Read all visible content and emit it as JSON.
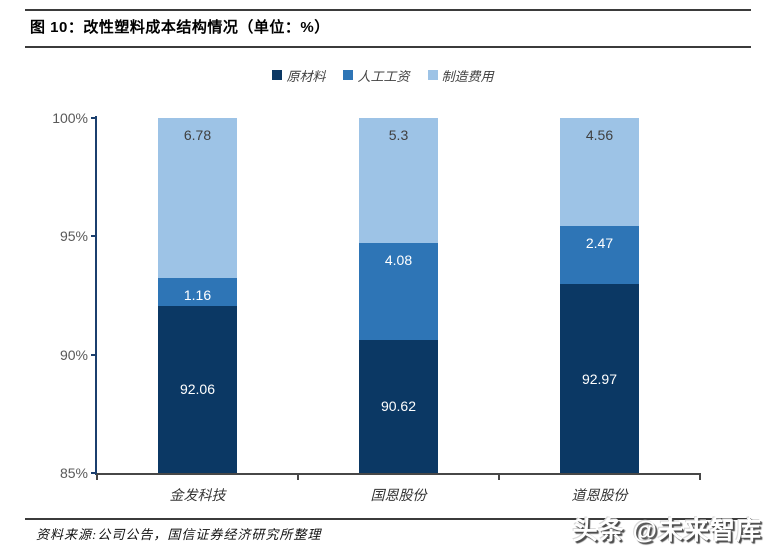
{
  "figure": {
    "title": "图 10：改性塑料成本结构情况（单位：%）",
    "source": "资料来源:公司公告，国信证券经济研究所整理",
    "watermark": "头条 @未来智库"
  },
  "chart_data": {
    "type": "bar",
    "stacked": true,
    "title": "改性塑料成本结构情况",
    "unit": "%",
    "categories": [
      "金发科技",
      "国恩股份",
      "道恩股份"
    ],
    "series": [
      {
        "name": "原材料",
        "color": "#0b3864",
        "values": [
          92.06,
          90.62,
          92.97
        ],
        "label_color": "#ffffff",
        "label_position": "center"
      },
      {
        "name": "人工工资",
        "color": "#2e75b6",
        "values": [
          1.16,
          4.08,
          2.47
        ],
        "label_color": "#ffffff",
        "label_position": "top"
      },
      {
        "name": "制造费用",
        "color": "#9dc3e6",
        "values": [
          6.78,
          5.3,
          4.56
        ],
        "label_color": "#404040",
        "label_position": "top"
      }
    ],
    "y_axis": {
      "min": 85,
      "max": 100,
      "ticks": [
        {
          "label": "85%",
          "value": 85
        },
        {
          "label": "90%",
          "value": 90
        },
        {
          "label": "95%",
          "value": 95
        },
        {
          "label": "100%",
          "value": 100
        }
      ]
    },
    "legend_position": "top",
    "grid": false,
    "axis_colors": {
      "y_axis": "#1b3f6e",
      "x_axis": "#474747",
      "tick_label": "#595959"
    }
  }
}
